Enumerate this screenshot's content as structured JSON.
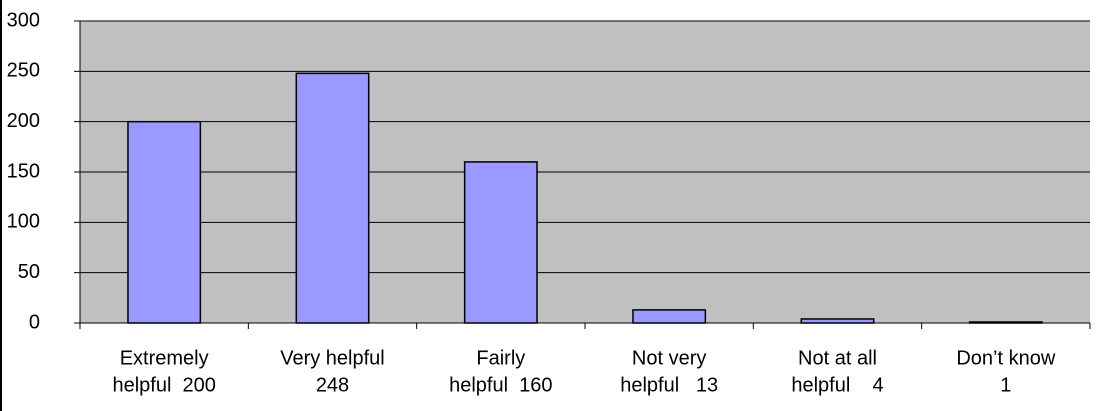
{
  "chart_data": {
    "type": "bar",
    "categories": [
      [
        "Extremely",
        "helpful  200"
      ],
      [
        "Very helpful",
        "248"
      ],
      [
        "Fairly",
        "helpful  160"
      ],
      [
        "Not very",
        "helpful   13"
      ],
      [
        "Not at all",
        "helpful    4"
      ],
      [
        "Don’t know",
        "1"
      ]
    ],
    "values": [
      200,
      248,
      160,
      13,
      4,
      1
    ],
    "color": "#9999ff",
    "background": "#c0c0c0",
    "ylim": [
      0,
      300
    ],
    "yticks": [
      0,
      50,
      100,
      150,
      200,
      250,
      300
    ],
    "grid": true
  }
}
